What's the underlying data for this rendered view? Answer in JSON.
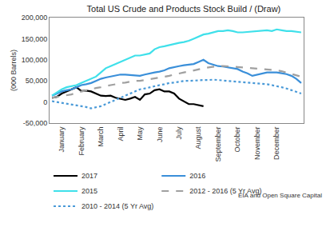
{
  "chart_data": {
    "type": "line",
    "title": "Total US Crude and Products Stock Build / (Draw)",
    "y_label": "(000 Barrels)",
    "source": "EIA and Open Square Capital",
    "grid": false,
    "legend": "bottom",
    "categories": [
      null,
      null,
      "January",
      null,
      null,
      null,
      "February",
      null,
      null,
      null,
      "March",
      null,
      null,
      null,
      "April",
      null,
      null,
      null,
      "May",
      null,
      null,
      null,
      "June",
      null,
      null,
      null,
      "July",
      null,
      null,
      null,
      "August",
      null,
      null,
      null,
      "September",
      null,
      null,
      null,
      "October",
      null,
      null,
      null,
      "November",
      null,
      null,
      null,
      "December",
      null,
      null,
      null,
      null,
      null
    ],
    "ylim": [
      -50000,
      200000
    ],
    "yticks": [
      {
        "value": -50000,
        "label": "-50,000"
      },
      0,
      {
        "value": 50000,
        "label": "50,000"
      },
      {
        "value": 100000,
        "label": "100,000"
      },
      {
        "value": 150000,
        "label": "150,000"
      },
      {
        "value": 200000,
        "label": "200,000"
      }
    ],
    "series": [
      {
        "name": "2017",
        "color": "#000000",
        "line_style": "solid",
        "values": [
          10000,
          12000,
          20000,
          25000,
          30000,
          35000,
          26000,
          27000,
          25000,
          20000,
          15000,
          14000,
          15000,
          10000,
          8000,
          5000,
          8000,
          12000,
          5000,
          18000,
          20000,
          28000,
          30000,
          25000,
          25000,
          20000,
          8000,
          2000,
          -5000,
          -5000,
          -8000,
          -10000,
          null,
          null,
          null,
          null,
          null,
          null,
          null,
          null,
          null,
          null,
          null,
          null,
          null,
          null,
          null,
          null,
          null,
          null,
          null,
          null
        ]
      },
      {
        "name": "2016",
        "color": "#3a8fd9",
        "line_style": "solid",
        "values": [
          15000,
          20000,
          25000,
          28000,
          30000,
          35000,
          40000,
          42000,
          45000,
          50000,
          55000,
          58000,
          60000,
          62000,
          65000,
          65000,
          64000,
          63000,
          62000,
          65000,
          68000,
          70000,
          72000,
          75000,
          80000,
          83000,
          85000,
          87000,
          88000,
          90000,
          95000,
          100000,
          92000,
          88000,
          85000,
          84000,
          82000,
          80000,
          78000,
          72000,
          68000,
          62000,
          65000,
          68000,
          70000,
          70000,
          70000,
          68000,
          66000,
          62000,
          55000,
          45000
        ]
      },
      {
        "name": "2015",
        "color": "#3fe0ea",
        "line_style": "solid",
        "values": [
          15000,
          22000,
          30000,
          35000,
          38000,
          40000,
          45000,
          50000,
          55000,
          60000,
          70000,
          80000,
          85000,
          90000,
          95000,
          100000,
          105000,
          110000,
          110000,
          112000,
          115000,
          125000,
          130000,
          132000,
          135000,
          138000,
          140000,
          142000,
          145000,
          150000,
          155000,
          160000,
          162000,
          165000,
          168000,
          168000,
          170000,
          168000,
          165000,
          165000,
          166000,
          168000,
          168000,
          170000,
          170000,
          168000,
          172000,
          170000,
          168000,
          168000,
          166000,
          165000
        ]
      },
      {
        "name": "2012 - 2016 (5 Yr Avg)",
        "color": "#a0a0a0",
        "line_style": "dash",
        "values": [
          10000,
          12000,
          14000,
          16000,
          18000,
          22000,
          25000,
          28000,
          30000,
          33000,
          35000,
          38000,
          40000,
          42000,
          45000,
          46000,
          48000,
          50000,
          50000,
          52000,
          53000,
          55000,
          57000,
          60000,
          62000,
          65000,
          68000,
          70000,
          72000,
          75000,
          78000,
          80000,
          82000,
          84000,
          85000,
          85000,
          85000,
          84000,
          83000,
          82000,
          82000,
          80000,
          80000,
          79000,
          78000,
          77000,
          75000,
          73000,
          70000,
          67000,
          63000,
          60000
        ]
      },
      {
        "name": "2010 - 2014 (5 Yr Avg)",
        "color": "#4a9ad8",
        "line_style": "dot",
        "values": [
          2000,
          0,
          -2000,
          -4000,
          -5000,
          -8000,
          -10000,
          -12000,
          -15000,
          -12000,
          -10000,
          -5000,
          0,
          5000,
          10000,
          15000,
          20000,
          25000,
          30000,
          32000,
          35000,
          38000,
          40000,
          42000,
          45000,
          46000,
          48000,
          50000,
          50000,
          51000,
          52000,
          52000,
          52000,
          53000,
          52000,
          51000,
          50000,
          50000,
          49000,
          48000,
          47000,
          46000,
          45000,
          44000,
          42000,
          40000,
          38000,
          35000,
          32000,
          28000,
          24000,
          20000
        ]
      }
    ]
  }
}
